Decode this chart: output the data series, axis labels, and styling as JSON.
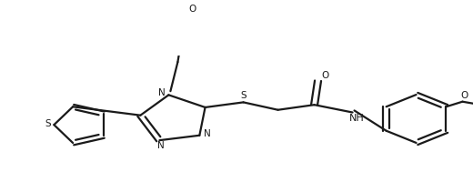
{
  "bg_color": "#ffffff",
  "line_color": "#1a1a1a",
  "line_width": 1.6,
  "fig_width": 5.2,
  "fig_height": 2.0,
  "dpi": 100,
  "font_size": 7.5,
  "xlim": [
    0,
    520
  ],
  "ylim": [
    0,
    200
  ]
}
